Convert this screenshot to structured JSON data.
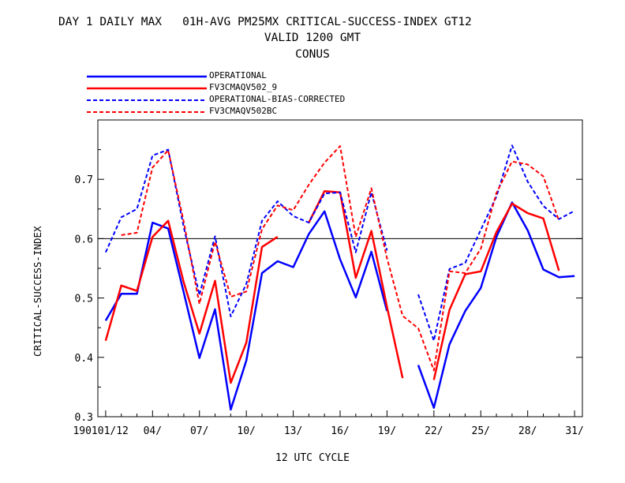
{
  "title": {
    "line1": "DAY 1 DAILY MAX   01H-AVG PM25MX CRITICAL-SUCCESS-INDEX GT12",
    "line2": "VALID 1200 GMT",
    "line3": "CONUS"
  },
  "chart_data": {
    "type": "line",
    "xlabel": "12 UTC CYCLE",
    "ylabel": "CRITICAL-SUCCESS-INDEX",
    "xlim": [
      0.5,
      31.5
    ],
    "ylim": [
      0.3,
      0.8
    ],
    "reference_line": 0.6,
    "grid": false,
    "legend_position": "top-left, above plot",
    "x_ticks": [
      {
        "x": 1,
        "label": "190101/12"
      },
      {
        "x": 4,
        "label": "04/"
      },
      {
        "x": 7,
        "label": "07/"
      },
      {
        "x": 10,
        "label": "10/"
      },
      {
        "x": 13,
        "label": "13/"
      },
      {
        "x": 16,
        "label": "16/"
      },
      {
        "x": 19,
        "label": "19/"
      },
      {
        "x": 22,
        "label": "22/"
      },
      {
        "x": 25,
        "label": "25/"
      },
      {
        "x": 28,
        "label": "28/"
      },
      {
        "x": 31,
        "label": "31/"
      }
    ],
    "y_ticks": [
      {
        "y": 0.3,
        "label": "0.3"
      },
      {
        "y": 0.4,
        "label": "0.4"
      },
      {
        "y": 0.5,
        "label": "0.5"
      },
      {
        "y": 0.6,
        "label": "0.6"
      },
      {
        "y": 0.7,
        "label": "0.7"
      }
    ],
    "x": [
      1,
      2,
      3,
      4,
      5,
      6,
      7,
      8,
      9,
      10,
      11,
      12,
      13,
      14,
      15,
      16,
      17,
      18,
      19,
      20,
      21,
      22,
      23,
      24,
      25,
      26,
      27,
      28,
      29,
      30,
      31
    ],
    "series": [
      {
        "name": "OPERATIONAL",
        "color": "#0000ff",
        "dashed": false,
        "values": [
          0.462,
          0.507,
          0.507,
          0.627,
          0.617,
          0.509,
          0.399,
          0.481,
          0.312,
          0.395,
          0.542,
          0.562,
          0.552,
          0.608,
          0.646,
          0.565,
          0.501,
          0.578,
          0.478,
          null,
          0.387,
          0.315,
          0.422,
          0.478,
          0.517,
          0.603,
          0.661,
          0.614,
          0.548,
          0.535,
          0.537
        ]
      },
      {
        "name": "FV3CMAQV502_9",
        "color": "#ff0000",
        "dashed": false,
        "values": [
          0.428,
          0.521,
          0.512,
          0.603,
          0.63,
          0.526,
          0.44,
          0.529,
          0.357,
          0.425,
          0.586,
          0.603,
          null,
          0.627,
          0.68,
          0.678,
          0.534,
          0.613,
          0.485,
          0.365,
          null,
          0.362,
          0.48,
          0.54,
          0.545,
          0.611,
          0.659,
          0.643,
          0.634,
          0.546,
          null
        ]
      },
      {
        "name": "OPERATIONAL-BIAS-CORRECTED",
        "color": "#0000ff",
        "dashed": true,
        "values": [
          0.577,
          0.636,
          0.65,
          0.74,
          0.75,
          0.619,
          0.505,
          0.604,
          0.469,
          0.524,
          0.63,
          0.663,
          0.638,
          0.627,
          0.676,
          0.678,
          0.577,
          0.678,
          0.58,
          null,
          0.506,
          0.428,
          0.549,
          0.559,
          0.615,
          0.671,
          0.757,
          0.696,
          0.655,
          0.633,
          0.647
        ]
      },
      {
        "name": "FV3CMAQV502BC",
        "color": "#ff0000",
        "dashed": true,
        "values": [
          null,
          0.606,
          0.61,
          0.72,
          0.749,
          0.628,
          0.49,
          0.595,
          0.502,
          0.511,
          0.616,
          0.656,
          0.648,
          0.691,
          0.728,
          0.756,
          0.603,
          0.685,
          0.567,
          0.47,
          0.449,
          0.378,
          0.545,
          0.542,
          0.583,
          0.677,
          0.73,
          0.725,
          0.705,
          0.63,
          null
        ]
      }
    ]
  }
}
